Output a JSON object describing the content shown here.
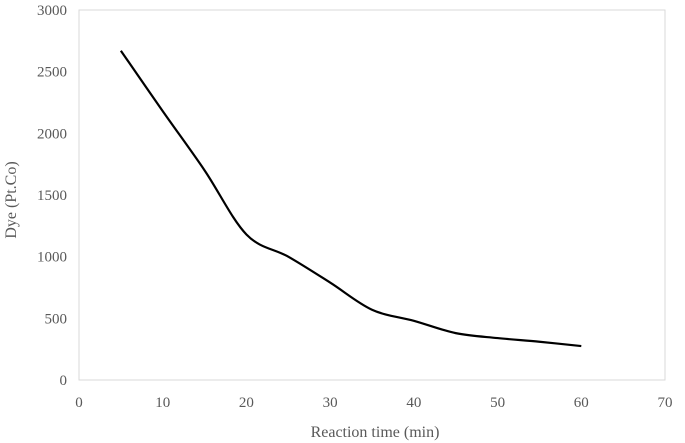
{
  "chart_data": {
    "type": "line",
    "title": "",
    "xlabel": "Reaction time (min)",
    "ylabel": "Dye (Pt.Co)",
    "xlim": [
      0,
      70
    ],
    "ylim": [
      0,
      3000
    ],
    "xticks": [
      0,
      10,
      20,
      30,
      40,
      50,
      60,
      70
    ],
    "yticks": [
      0,
      500,
      1000,
      1500,
      2000,
      2500,
      3000
    ],
    "grid": false,
    "legend": "none",
    "smooth": true,
    "series": [
      {
        "x": [
          5,
          10,
          15,
          20,
          25,
          30,
          35,
          40,
          45,
          50,
          55,
          60
        ],
        "y": [
          2670,
          2180,
          1700,
          1180,
          1000,
          790,
          570,
          480,
          380,
          340,
          310,
          275
        ],
        "color": "#000000"
      }
    ],
    "axis_color": "#d9d9d9",
    "text_color": "#595959"
  }
}
